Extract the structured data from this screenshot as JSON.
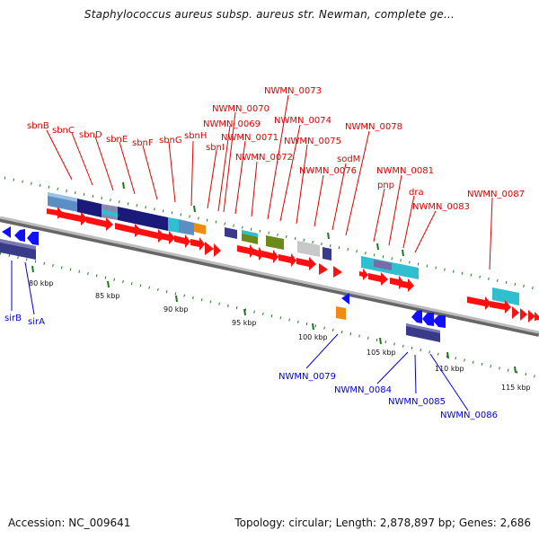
{
  "title": "Staphylococcus aureus subsp. aureus str. Newman, complete ge...",
  "accession": "Accession: NC_009641",
  "topology": "Topology: circular; Length: 2,878,897 bp; Genes: 2,686",
  "colors": {
    "forward_label": "#e00000",
    "reverse_label": "#0000e0",
    "backbone": "#888888",
    "tick": "#1a7a1a"
  },
  "kbp_ticks": [
    "80 kbp",
    "85 kbp",
    "90 kbp",
    "95 kbp",
    "100 kbp",
    "105 kbp",
    "110 kbp",
    "115 kbp"
  ],
  "forward_genes": [
    "sbnB",
    "sbnC",
    "sbnD",
    "sbnE",
    "sbnF",
    "sbnG",
    "sbnH",
    "sbnI",
    "NWMN_0069",
    "NWMN_0070",
    "NWMN_0071",
    "NWMN_0072",
    "NWMN_0073",
    "NWMN_0074",
    "NWMN_0075",
    "NWMN_0076",
    "sodM",
    "NWMN_0078",
    "pnp",
    "NWMN_0081",
    "dra",
    "NWMN_0083",
    "NWMN_0087"
  ],
  "reverse_genes": [
    "sirB",
    "sirA",
    "NWMN_0079",
    "NWMN_0084",
    "NWMN_0085",
    "NWMN_0086"
  ]
}
